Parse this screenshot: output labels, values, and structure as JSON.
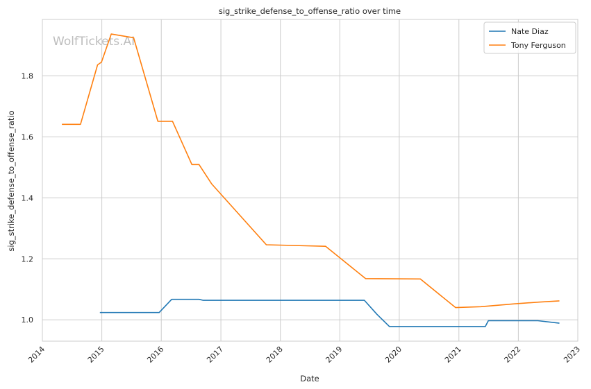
{
  "chart_data": {
    "type": "line",
    "title": "sig_strike_defense_to_offense_ratio over time",
    "xlabel": "Date",
    "ylabel": "sig_strike_defense_to_offense_ratio",
    "watermark": "WolfTickets.AI",
    "x_ticks": [
      "2014",
      "2015",
      "2016",
      "2017",
      "2018",
      "2019",
      "2020",
      "2021",
      "2022",
      "2023"
    ],
    "y_ticks": [
      "1.0",
      "1.2",
      "1.4",
      "1.6",
      "1.8"
    ],
    "xlim": [
      "2014-01-01",
      "2023-01-01"
    ],
    "ylim": [
      0.93,
      1.985
    ],
    "grid": true,
    "legend_position": "top-right",
    "series": [
      {
        "name": "Nate Diaz",
        "color": "#1f77b4",
        "points": [
          [
            "2014-12-20",
            1.024
          ],
          [
            "2015-12-19",
            1.024
          ],
          [
            "2016-03-05",
            1.067
          ],
          [
            "2016-08-20",
            1.067
          ],
          [
            "2016-09-15",
            1.064
          ],
          [
            "2019-06-01",
            1.064
          ],
          [
            "2019-08-17",
            1.018
          ],
          [
            "2019-11-02",
            0.978
          ],
          [
            "2021-06-12",
            0.978
          ],
          [
            "2021-07-01",
            0.997
          ],
          [
            "2022-05-01",
            0.997
          ],
          [
            "2022-09-10",
            0.989
          ]
        ]
      },
      {
        "name": "Tony Ferguson",
        "color": "#ff7f0e",
        "points": [
          [
            "2014-05-01",
            1.641
          ],
          [
            "2014-08-23",
            1.641
          ],
          [
            "2014-12-06",
            1.836
          ],
          [
            "2014-12-30",
            1.845
          ],
          [
            "2015-02-28",
            1.937
          ],
          [
            "2015-07-15",
            1.925
          ],
          [
            "2015-12-11",
            1.651
          ],
          [
            "2016-03-10",
            1.651
          ],
          [
            "2016-07-07",
            1.509
          ],
          [
            "2016-08-20",
            1.509
          ],
          [
            "2016-11-05",
            1.446
          ],
          [
            "2017-10-07",
            1.246
          ],
          [
            "2018-10-06",
            1.241
          ],
          [
            "2019-06-08",
            1.135
          ],
          [
            "2020-05-09",
            1.134
          ],
          [
            "2020-12-12",
            1.04
          ],
          [
            "2021-05-15",
            1.043
          ],
          [
            "2021-12-01",
            1.052
          ],
          [
            "2022-05-07",
            1.058
          ],
          [
            "2022-09-10",
            1.062
          ]
        ]
      }
    ]
  }
}
